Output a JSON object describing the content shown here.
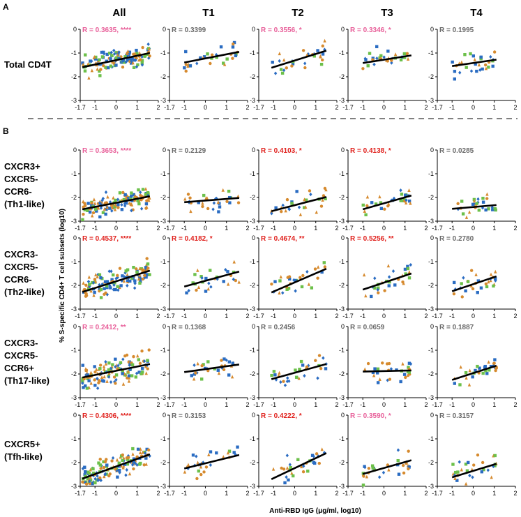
{
  "colors": {
    "pink": "#e8609a",
    "red": "#e0201c",
    "gray": "#6a6a6a",
    "orange": "#d68a2e",
    "green": "#6cc04a",
    "blue": "#2a6cc2",
    "line": "#000000"
  },
  "panels": {
    "a": "A",
    "b": "B"
  },
  "columns": [
    "All",
    "T1",
    "T2",
    "T3",
    "T4"
  ],
  "rows": [
    {
      "label": [
        "Total CD4T"
      ]
    },
    {
      "label": [
        "CXCR3+",
        "CXCR5-",
        "CCR6-",
        "(Th1-like)"
      ]
    },
    {
      "label": [
        "CXCR3-",
        "CXCR5-",
        "CCR6-",
        "(Th2-like)"
      ]
    },
    {
      "label": [
        "CXCR3-",
        "CXCR5-",
        "CCR6+",
        "(Th17-like)"
      ]
    },
    {
      "label": [
        "CXCR5+",
        "(Tfh-like)"
      ]
    }
  ],
  "axes": {
    "xlabel": "Anti-RBD IgG (μg/ml, log10)",
    "ylabel": "% S-specific CD4+ T cell subsets (log10)",
    "xticks": [
      "-1.7",
      "-1",
      "0",
      "1",
      "2"
    ],
    "yticks": [
      "0",
      "-1",
      "-2",
      "-3"
    ]
  },
  "chart_data": {
    "type": "scatter",
    "xlim": [
      -1.7,
      2
    ],
    "ylim": [
      -3,
      0
    ],
    "series_markers": [
      {
        "color": "orange",
        "shape": "circle"
      },
      {
        "color": "green",
        "shape": "square"
      },
      {
        "color": "blue",
        "shape": "square"
      },
      {
        "color": "orange",
        "shape": "triangle"
      },
      {
        "color": "blue",
        "shape": "diamond"
      }
    ],
    "annotations": [
      [
        {
          "text": "R = 0.3635, ****",
          "color": "pink"
        },
        {
          "text": "R = 0.3399",
          "color": "gray"
        },
        {
          "text": "R = 0.3556, *",
          "color": "pink"
        },
        {
          "text": "R = 0.3346, *",
          "color": "pink"
        },
        {
          "text": "R = 0.1995",
          "color": "gray"
        }
      ],
      [
        {
          "text": "R = 0.3653, ****",
          "color": "pink"
        },
        {
          "text": "R = 0.2129",
          "color": "gray"
        },
        {
          "text": "R = 0.4103, *",
          "color": "red"
        },
        {
          "text": "R = 0.4138, *",
          "color": "red"
        },
        {
          "text": "R = 0.0285",
          "color": "gray"
        }
      ],
      [
        {
          "text": "R = 0.4537, ****",
          "color": "red"
        },
        {
          "text": "R = 0.4182, *",
          "color": "red"
        },
        {
          "text": "R = 0.4674, **",
          "color": "red"
        },
        {
          "text": "R = 0.5256, **",
          "color": "red"
        },
        {
          "text": "R = 0.2780",
          "color": "gray"
        }
      ],
      [
        {
          "text": "R = 0.2412, **",
          "color": "pink"
        },
        {
          "text": "R = 0.1368",
          "color": "gray"
        },
        {
          "text": "R = 0.2456",
          "color": "gray"
        },
        {
          "text": "R = 0.0659",
          "color": "gray"
        },
        {
          "text": "R = 0.1887",
          "color": "gray"
        }
      ],
      [
        {
          "text": "R = 0.4306, ****",
          "color": "red"
        },
        {
          "text": "R = 0.3153",
          "color": "gray"
        },
        {
          "text": "R = 0.4222, *",
          "color": "red"
        },
        {
          "text": "R = 0.3590, *",
          "color": "pink"
        },
        {
          "text": "R = 0.3157",
          "color": "gray"
        }
      ]
    ],
    "fits": [
      [
        {
          "x": [
            -1.6,
            1.6
          ],
          "y": [
            -1.6,
            -1.0
          ]
        },
        {
          "x": [
            -1.0,
            1.6
          ],
          "y": [
            -1.4,
            -0.95
          ]
        },
        {
          "x": [
            -1.1,
            1.5
          ],
          "y": [
            -1.62,
            -0.9
          ]
        },
        {
          "x": [
            -1.0,
            1.3
          ],
          "y": [
            -1.42,
            -1.1
          ]
        },
        {
          "x": [
            -1.0,
            1.1
          ],
          "y": [
            -1.55,
            -1.28
          ]
        }
      ],
      [
        {
          "x": [
            -1.6,
            1.6
          ],
          "y": [
            -2.5,
            -1.95
          ]
        },
        {
          "x": [
            -1.0,
            1.6
          ],
          "y": [
            -2.2,
            -2.02
          ]
        },
        {
          "x": [
            -1.1,
            1.5
          ],
          "y": [
            -2.58,
            -1.98
          ]
        },
        {
          "x": [
            -1.0,
            1.3
          ],
          "y": [
            -2.5,
            -1.92
          ]
        },
        {
          "x": [
            -1.0,
            1.1
          ],
          "y": [
            -2.48,
            -2.32
          ]
        }
      ],
      [
        {
          "x": [
            -1.6,
            1.6
          ],
          "y": [
            -2.28,
            -1.38
          ]
        },
        {
          "x": [
            -1.0,
            1.6
          ],
          "y": [
            -2.05,
            -1.42
          ]
        },
        {
          "x": [
            -1.1,
            1.5
          ],
          "y": [
            -2.3,
            -1.3
          ]
        },
        {
          "x": [
            -1.0,
            1.3
          ],
          "y": [
            -2.18,
            -1.5
          ]
        },
        {
          "x": [
            -1.0,
            1.1
          ],
          "y": [
            -2.25,
            -1.62
          ]
        }
      ],
      [
        {
          "x": [
            -1.6,
            1.6
          ],
          "y": [
            -2.15,
            -1.58
          ]
        },
        {
          "x": [
            -1.0,
            1.6
          ],
          "y": [
            -1.92,
            -1.6
          ]
        },
        {
          "x": [
            -1.1,
            1.5
          ],
          "y": [
            -2.22,
            -1.58
          ]
        },
        {
          "x": [
            -1.0,
            1.3
          ],
          "y": [
            -1.9,
            -1.85
          ]
        },
        {
          "x": [
            -1.0,
            1.1
          ],
          "y": [
            -2.25,
            -1.65
          ]
        }
      ],
      [
        {
          "x": [
            -1.6,
            1.6
          ],
          "y": [
            -2.68,
            -1.65
          ]
        },
        {
          "x": [
            -1.0,
            1.6
          ],
          "y": [
            -2.25,
            -1.68
          ]
        },
        {
          "x": [
            -1.1,
            1.5
          ],
          "y": [
            -2.7,
            -1.6
          ]
        },
        {
          "x": [
            -1.0,
            1.3
          ],
          "y": [
            -2.48,
            -1.9
          ]
        },
        {
          "x": [
            -1.0,
            1.1
          ],
          "y": [
            -2.62,
            -2.05
          ]
        }
      ]
    ],
    "spread": [
      0.35,
      0.33,
      0.38,
      0.38,
      0.38
    ]
  }
}
